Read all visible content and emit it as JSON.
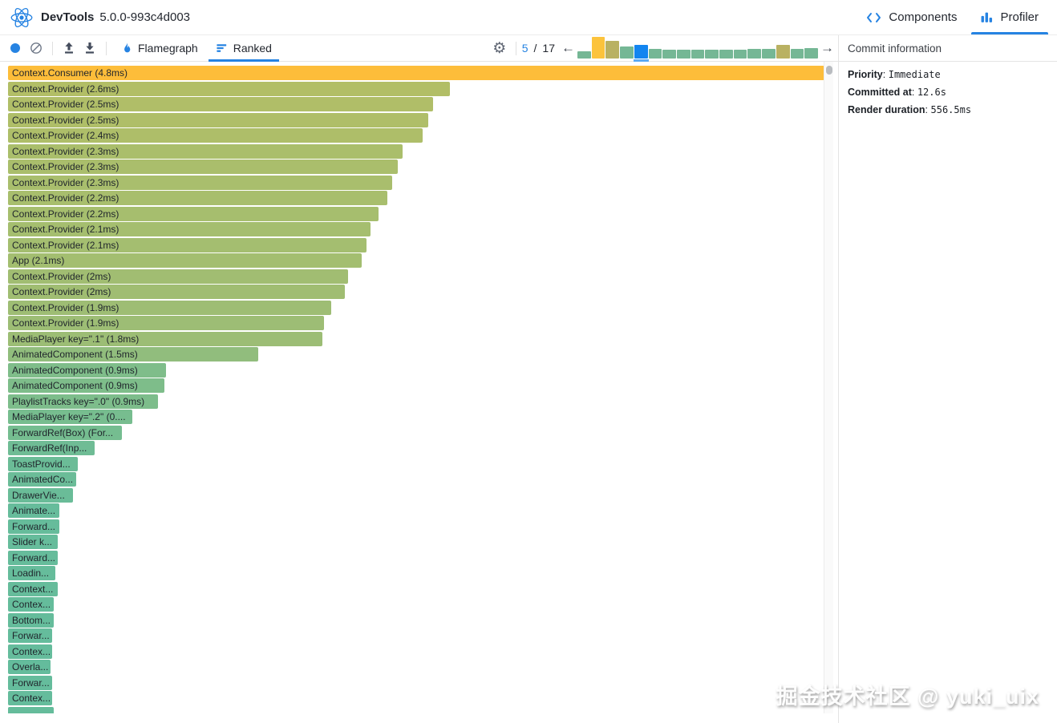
{
  "header": {
    "app_title": "DevTools",
    "version": "5.0.0-993c4d003",
    "tabs": [
      {
        "label": "Components",
        "icon": "code-brackets-icon",
        "active": false
      },
      {
        "label": "Profiler",
        "icon": "bar-chart-icon",
        "active": true
      }
    ]
  },
  "toolbar": {
    "buttons": [
      {
        "name": "record",
        "icon": "filled-circle"
      },
      {
        "name": "clear",
        "icon": "slash-circle"
      },
      {
        "name": "load-profile",
        "icon": "arrow-up-from-line"
      },
      {
        "name": "save-profile",
        "icon": "arrow-down-to-line"
      },
      {
        "name": "settings",
        "icon": "gear"
      }
    ],
    "view_tabs": [
      {
        "label": "Flamegraph",
        "icon": "flame-icon",
        "active": false
      },
      {
        "label": "Ranked",
        "icon": "ranked-bars-icon",
        "active": true
      }
    ],
    "commit_nav": {
      "current": "5",
      "separator": "/",
      "total": "17",
      "prev_icon": "←",
      "next_icon": "→"
    }
  },
  "commit_info": {
    "title": "Commit information",
    "rows": [
      {
        "label": "Priority",
        "value": "Immediate"
      },
      {
        "label": "Committed at",
        "value": "12.6s"
      },
      {
        "label": "Render duration",
        "value": "556.5ms"
      }
    ]
  },
  "chart_data": [
    {
      "type": "bar",
      "name": "ranked-chart",
      "orientation": "horizontal",
      "unit": "ms",
      "max_value_ms": 4.8,
      "selected_index": 0,
      "bars": [
        {
          "label": "Context.Consumer (4.8ms)",
          "value": 4.8,
          "selected": true
        },
        {
          "label": "Context.Provider (2.6ms)",
          "value": 2.6
        },
        {
          "label": "Context.Provider (2.5ms)",
          "value": 2.5
        },
        {
          "label": "Context.Provider (2.5ms)",
          "value": 2.47
        },
        {
          "label": "Context.Provider (2.4ms)",
          "value": 2.44
        },
        {
          "label": "Context.Provider (2.3ms)",
          "value": 2.32
        },
        {
          "label": "Context.Provider (2.3ms)",
          "value": 2.29
        },
        {
          "label": "Context.Provider (2.3ms)",
          "value": 2.26
        },
        {
          "label": "Context.Provider (2.2ms)",
          "value": 2.23
        },
        {
          "label": "Context.Provider (2.2ms)",
          "value": 2.18
        },
        {
          "label": "Context.Provider (2.1ms)",
          "value": 2.13
        },
        {
          "label": "Context.Provider (2.1ms)",
          "value": 2.11
        },
        {
          "label": "App (2.1ms)",
          "value": 2.08
        },
        {
          "label": "Context.Provider (2ms)",
          "value": 2.0
        },
        {
          "label": "Context.Provider (2ms)",
          "value": 1.98
        },
        {
          "label": "Context.Provider (1.9ms)",
          "value": 1.9
        },
        {
          "label": "Context.Provider (1.9ms)",
          "value": 1.86
        },
        {
          "label": "MediaPlayer key=\".1\" (1.8ms)",
          "value": 1.85
        },
        {
          "label": "AnimatedComponent (1.5ms)",
          "value": 1.47
        },
        {
          "label": "AnimatedComponent (0.9ms)",
          "value": 0.93
        },
        {
          "label": "AnimatedComponent (0.9ms)",
          "value": 0.92
        },
        {
          "label": "PlaylistTracks key=\".0\" (0.9ms)",
          "value": 0.88
        },
        {
          "label": "MediaPlayer key=\".2\" (0....",
          "value": 0.73
        },
        {
          "label": "ForwardRef(Box) (For...",
          "value": 0.67
        },
        {
          "label": "ForwardRef(Inp...",
          "value": 0.51
        },
        {
          "label": "ToastProvid...",
          "value": 0.41
        },
        {
          "label": "AnimatedCo...",
          "value": 0.4
        },
        {
          "label": "DrawerVie...",
          "value": 0.38
        },
        {
          "label": "Animate...",
          "value": 0.3
        },
        {
          "label": "Forward...",
          "value": 0.3
        },
        {
          "label": "Slider k...",
          "value": 0.29
        },
        {
          "label": "Forward...",
          "value": 0.29
        },
        {
          "label": "Loadin...",
          "value": 0.28
        },
        {
          "label": "Context...",
          "value": 0.29
        },
        {
          "label": "Contex...",
          "value": 0.27
        },
        {
          "label": "Bottom...",
          "value": 0.27
        },
        {
          "label": "Forwar...",
          "value": 0.26
        },
        {
          "label": "Contex...",
          "value": 0.26
        },
        {
          "label": "Overla...",
          "value": 0.25
        },
        {
          "label": "Forwar...",
          "value": 0.26
        },
        {
          "label": "Contex...",
          "value": 0.26
        },
        {
          "label": "",
          "value": 0.27
        }
      ]
    },
    {
      "type": "bar",
      "name": "commit-selector",
      "selected_index": 4,
      "bars": [
        {
          "height_pct": 32,
          "color": "green"
        },
        {
          "height_pct": 100,
          "color": "yellow"
        },
        {
          "height_pct": 80,
          "color": "olive"
        },
        {
          "height_pct": 55,
          "color": "green"
        },
        {
          "height_pct": 62,
          "color": "blue-selected"
        },
        {
          "height_pct": 46,
          "color": "green"
        },
        {
          "height_pct": 42,
          "color": "green"
        },
        {
          "height_pct": 42,
          "color": "green"
        },
        {
          "height_pct": 42,
          "color": "green"
        },
        {
          "height_pct": 42,
          "color": "green"
        },
        {
          "height_pct": 42,
          "color": "green"
        },
        {
          "height_pct": 42,
          "color": "green"
        },
        {
          "height_pct": 43,
          "color": "green"
        },
        {
          "height_pct": 46,
          "color": "green"
        },
        {
          "height_pct": 62,
          "color": "olive"
        },
        {
          "height_pct": 46,
          "color": "green"
        },
        {
          "height_pct": 48,
          "color": "green"
        }
      ]
    }
  ],
  "colors": {
    "accent": "#2683E2",
    "selected_bar": "#fdbd3a",
    "scale_low": "#56bca6",
    "scale_high": "#edbf3d",
    "commit_green": "#75b795",
    "commit_yellow": "#fcc33c",
    "commit_olive": "#b9b162",
    "commit_selected_blue": "#1385f0"
  },
  "watermark": "掘金技术社区 @ yuki_uix"
}
